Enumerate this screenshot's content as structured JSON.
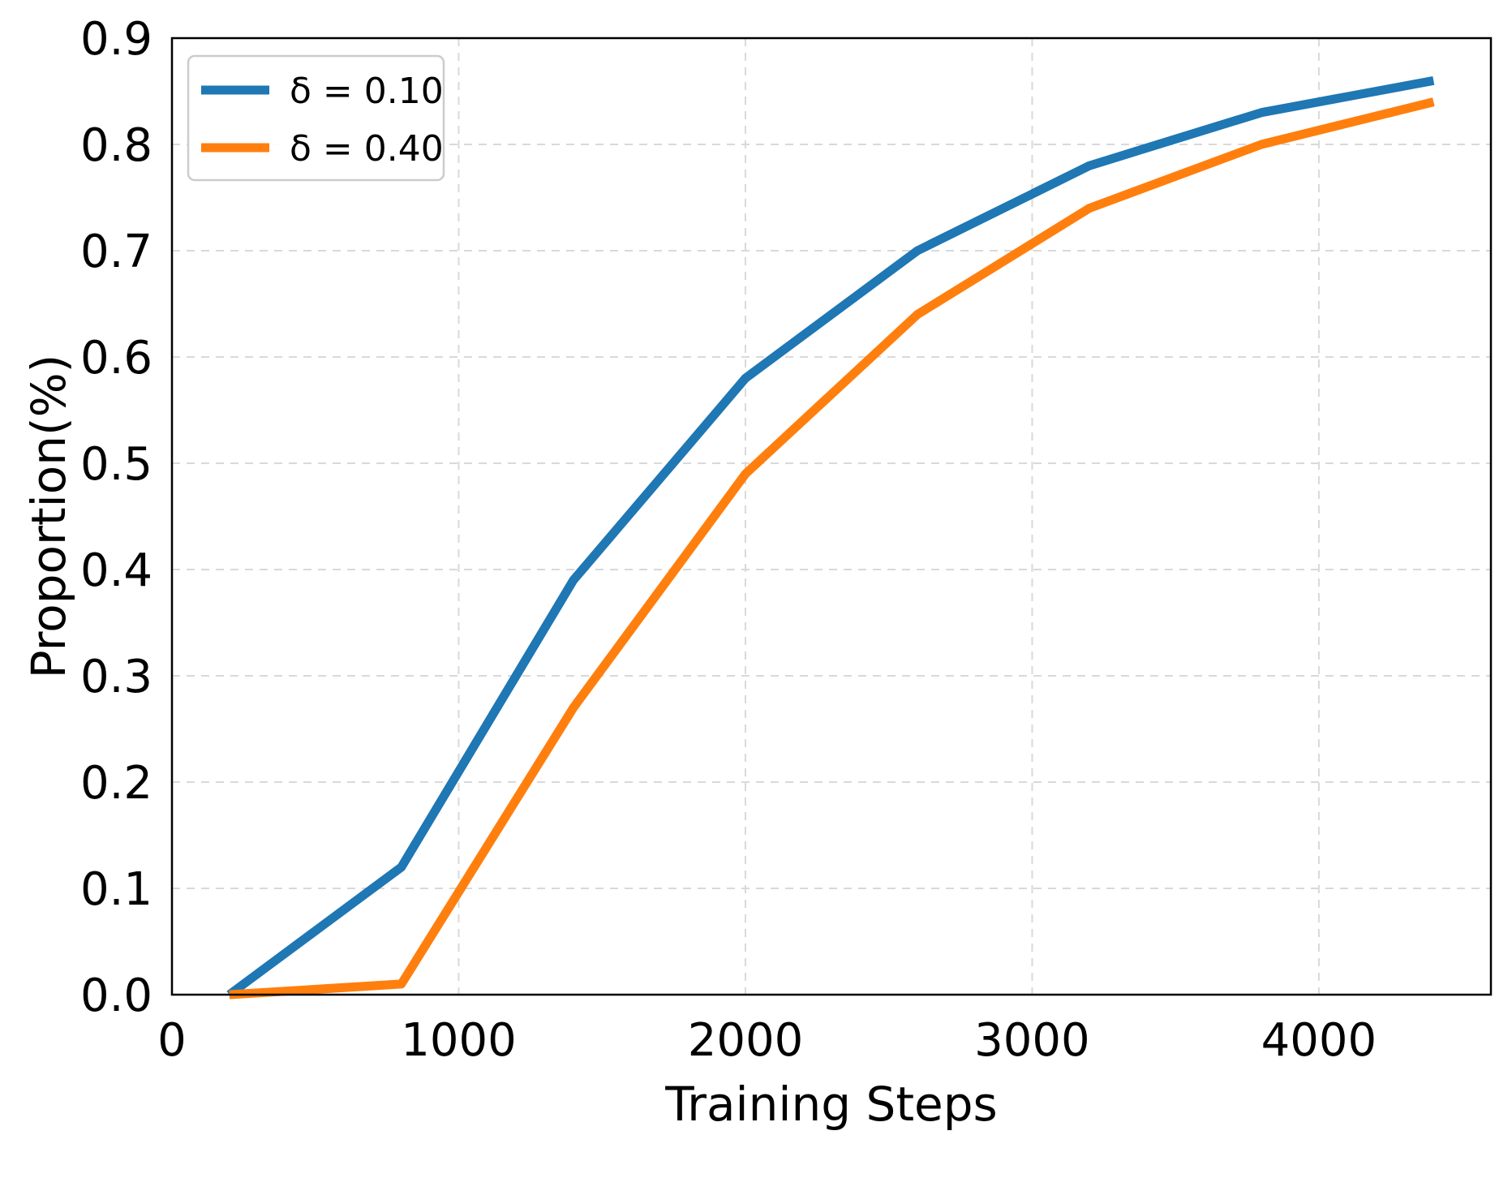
{
  "chart_data": {
    "type": "line",
    "xlabel": "Training Steps",
    "ylabel": "Proportion(%)",
    "xlim": [
      0,
      4600
    ],
    "ylim": [
      0,
      0.9
    ],
    "xticks": [
      0,
      1000,
      2000,
      3000,
      4000
    ],
    "xtick_labels": [
      "0",
      "1000",
      "2000",
      "3000",
      "4000"
    ],
    "yticks": [
      0,
      0.1,
      0.2,
      0.3,
      0.4,
      0.5,
      0.6,
      0.7,
      0.8,
      0.9
    ],
    "ytick_labels": [
      "0.0",
      "0.1",
      "0.2",
      "0.3",
      "0.4",
      "0.5",
      "0.6",
      "0.7",
      "0.8",
      "0.9"
    ],
    "grid": true,
    "legend_position": "top-left",
    "series": [
      {
        "name": "δ = 0.10",
        "color": "#1f77b4",
        "x": [
          200,
          800,
          1400,
          2000,
          2600,
          3200,
          3800,
          4400
        ],
        "y": [
          0.0,
          0.12,
          0.39,
          0.58,
          0.7,
          0.78,
          0.83,
          0.86
        ]
      },
      {
        "name": "δ = 0.40",
        "color": "#ff7f0e",
        "x": [
          200,
          800,
          1400,
          2000,
          2600,
          3200,
          3800,
          4400
        ],
        "y": [
          0.0,
          0.01,
          0.27,
          0.49,
          0.64,
          0.74,
          0.8,
          0.84
        ]
      }
    ]
  }
}
